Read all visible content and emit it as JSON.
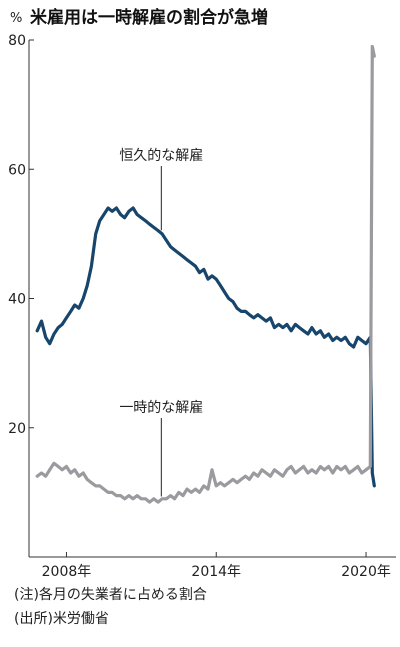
{
  "notes": {
    "note1": "(注)各月の失業者に占める割合",
    "note2": "(出所)米労働省"
  },
  "chart_data": {
    "type": "line",
    "title": "米雇用は一時解雇の割合が急増",
    "ylabel": "%",
    "xlabel": "",
    "ylim": [
      0,
      80
    ],
    "yticks": [
      20,
      40,
      60,
      80
    ],
    "xticks": [
      2008,
      2014,
      2020
    ],
    "xtick_labels": [
      "2008年",
      "2014年",
      "2020年"
    ],
    "xlim": [
      2006.5,
      2021.2
    ],
    "grid": false,
    "annotations": [
      {
        "text": "恒久的な解雇",
        "series": "permanent",
        "x": 2011.8
      },
      {
        "text": "一時的な解雇",
        "series": "temporary",
        "x": 2011.8
      }
    ],
    "series": [
      {
        "id": "permanent",
        "color": "#17456b",
        "points": [
          [
            2006.83,
            35.0
          ],
          [
            2007.0,
            36.5
          ],
          [
            2007.17,
            34.0
          ],
          [
            2007.33,
            33.0
          ],
          [
            2007.5,
            34.5
          ],
          [
            2007.67,
            35.5
          ],
          [
            2007.83,
            36.0
          ],
          [
            2008.0,
            37.0
          ],
          [
            2008.17,
            38.0
          ],
          [
            2008.33,
            39.0
          ],
          [
            2008.5,
            38.5
          ],
          [
            2008.67,
            40.0
          ],
          [
            2008.83,
            42.0
          ],
          [
            2009.0,
            45.0
          ],
          [
            2009.17,
            50.0
          ],
          [
            2009.33,
            52.0
          ],
          [
            2009.5,
            53.0
          ],
          [
            2009.67,
            54.0
          ],
          [
            2009.83,
            53.5
          ],
          [
            2010.0,
            54.0
          ],
          [
            2010.17,
            53.0
          ],
          [
            2010.33,
            52.5
          ],
          [
            2010.5,
            53.5
          ],
          [
            2010.67,
            54.0
          ],
          [
            2010.83,
            53.0
          ],
          [
            2011.0,
            52.5
          ],
          [
            2011.17,
            52.0
          ],
          [
            2011.33,
            51.5
          ],
          [
            2011.5,
            51.0
          ],
          [
            2011.67,
            50.5
          ],
          [
            2011.83,
            50.0
          ],
          [
            2012.0,
            49.0
          ],
          [
            2012.17,
            48.0
          ],
          [
            2012.33,
            47.5
          ],
          [
            2012.5,
            47.0
          ],
          [
            2012.67,
            46.5
          ],
          [
            2012.83,
            46.0
          ],
          [
            2013.0,
            45.5
          ],
          [
            2013.17,
            45.0
          ],
          [
            2013.33,
            44.0
          ],
          [
            2013.5,
            44.5
          ],
          [
            2013.67,
            43.0
          ],
          [
            2013.83,
            43.5
          ],
          [
            2014.0,
            43.0
          ],
          [
            2014.17,
            42.0
          ],
          [
            2014.33,
            41.0
          ],
          [
            2014.5,
            40.0
          ],
          [
            2014.67,
            39.5
          ],
          [
            2014.83,
            38.5
          ],
          [
            2015.0,
            38.0
          ],
          [
            2015.17,
            38.0
          ],
          [
            2015.33,
            37.5
          ],
          [
            2015.5,
            37.0
          ],
          [
            2015.67,
            37.5
          ],
          [
            2015.83,
            37.0
          ],
          [
            2016.0,
            36.5
          ],
          [
            2016.17,
            37.0
          ],
          [
            2016.33,
            35.5
          ],
          [
            2016.5,
            36.0
          ],
          [
            2016.67,
            35.5
          ],
          [
            2016.83,
            36.0
          ],
          [
            2017.0,
            35.0
          ],
          [
            2017.17,
            36.0
          ],
          [
            2017.33,
            35.5
          ],
          [
            2017.5,
            35.0
          ],
          [
            2017.67,
            34.5
          ],
          [
            2017.83,
            35.5
          ],
          [
            2018.0,
            34.5
          ],
          [
            2018.17,
            35.0
          ],
          [
            2018.33,
            34.0
          ],
          [
            2018.5,
            34.5
          ],
          [
            2018.67,
            33.5
          ],
          [
            2018.83,
            34.0
          ],
          [
            2019.0,
            33.5
          ],
          [
            2019.17,
            34.0
          ],
          [
            2019.33,
            33.0
          ],
          [
            2019.5,
            32.5
          ],
          [
            2019.67,
            34.0
          ],
          [
            2019.83,
            33.5
          ],
          [
            2020.0,
            33.0
          ],
          [
            2020.17,
            34.0
          ],
          [
            2020.25,
            13.0
          ],
          [
            2020.33,
            11.0
          ]
        ]
      },
      {
        "id": "temporary",
        "color": "#9a9a9f",
        "points": [
          [
            2006.83,
            12.5
          ],
          [
            2007.0,
            13.0
          ],
          [
            2007.17,
            12.5
          ],
          [
            2007.33,
            13.5
          ],
          [
            2007.5,
            14.5
          ],
          [
            2007.67,
            14.0
          ],
          [
            2007.83,
            13.5
          ],
          [
            2008.0,
            14.0
          ],
          [
            2008.17,
            13.0
          ],
          [
            2008.33,
            13.5
          ],
          [
            2008.5,
            12.5
          ],
          [
            2008.67,
            13.0
          ],
          [
            2008.83,
            12.0
          ],
          [
            2009.0,
            11.5
          ],
          [
            2009.17,
            11.0
          ],
          [
            2009.33,
            11.0
          ],
          [
            2009.5,
            10.5
          ],
          [
            2009.67,
            10.0
          ],
          [
            2009.83,
            10.0
          ],
          [
            2010.0,
            9.5
          ],
          [
            2010.17,
            9.5
          ],
          [
            2010.33,
            9.0
          ],
          [
            2010.5,
            9.5
          ],
          [
            2010.67,
            9.0
          ],
          [
            2010.83,
            9.5
          ],
          [
            2011.0,
            9.0
          ],
          [
            2011.17,
            9.0
          ],
          [
            2011.33,
            8.5
          ],
          [
            2011.5,
            9.0
          ],
          [
            2011.67,
            8.5
          ],
          [
            2011.83,
            9.0
          ],
          [
            2012.0,
            9.0
          ],
          [
            2012.17,
            9.5
          ],
          [
            2012.33,
            9.0
          ],
          [
            2012.5,
            10.0
          ],
          [
            2012.67,
            9.5
          ],
          [
            2012.83,
            10.5
          ],
          [
            2013.0,
            10.0
          ],
          [
            2013.17,
            10.5
          ],
          [
            2013.33,
            10.0
          ],
          [
            2013.5,
            11.0
          ],
          [
            2013.67,
            10.5
          ],
          [
            2013.83,
            13.5
          ],
          [
            2014.0,
            11.0
          ],
          [
            2014.17,
            11.5
          ],
          [
            2014.33,
            11.0
          ],
          [
            2014.5,
            11.5
          ],
          [
            2014.67,
            12.0
          ],
          [
            2014.83,
            11.5
          ],
          [
            2015.0,
            12.0
          ],
          [
            2015.17,
            12.5
          ],
          [
            2015.33,
            12.0
          ],
          [
            2015.5,
            13.0
          ],
          [
            2015.67,
            12.5
          ],
          [
            2015.83,
            13.5
          ],
          [
            2016.0,
            13.0
          ],
          [
            2016.17,
            12.5
          ],
          [
            2016.33,
            13.5
          ],
          [
            2016.5,
            13.0
          ],
          [
            2016.67,
            12.5
          ],
          [
            2016.83,
            13.5
          ],
          [
            2017.0,
            14.0
          ],
          [
            2017.17,
            13.0
          ],
          [
            2017.33,
            13.5
          ],
          [
            2017.5,
            14.0
          ],
          [
            2017.67,
            13.0
          ],
          [
            2017.83,
            13.5
          ],
          [
            2018.0,
            13.0
          ],
          [
            2018.17,
            14.0
          ],
          [
            2018.33,
            13.5
          ],
          [
            2018.5,
            14.0
          ],
          [
            2018.67,
            13.0
          ],
          [
            2018.83,
            14.0
          ],
          [
            2019.0,
            13.5
          ],
          [
            2019.17,
            14.0
          ],
          [
            2019.33,
            13.0
          ],
          [
            2019.5,
            13.5
          ],
          [
            2019.67,
            14.0
          ],
          [
            2019.83,
            13.0
          ],
          [
            2020.0,
            13.5
          ],
          [
            2020.17,
            14.0
          ],
          [
            2020.25,
            79.0
          ],
          [
            2020.33,
            77.5
          ]
        ]
      }
    ]
  }
}
